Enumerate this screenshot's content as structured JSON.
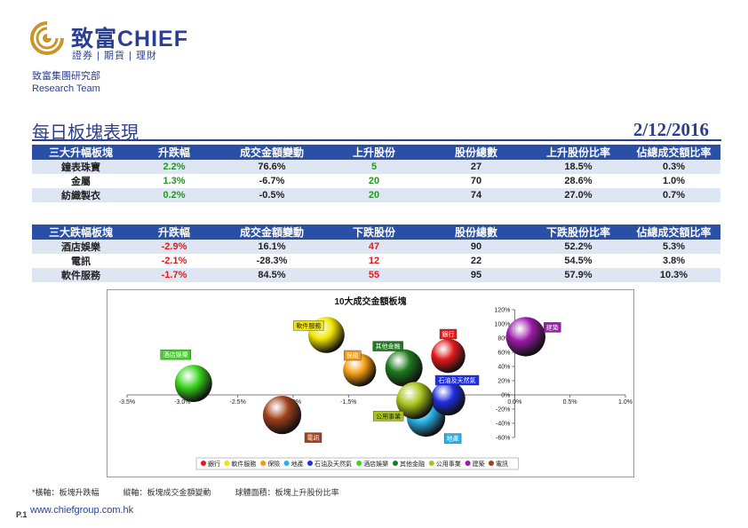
{
  "header": {
    "logo_name": "致富CHIEF",
    "logo_tagline": "證券 | 期貨 | 理財",
    "dept_cn": "致富集團研究部",
    "dept_en": "Research Team"
  },
  "page_title": "每日板塊表現",
  "date": "2/12/2016",
  "colors": {
    "brand": "#2a3f8f",
    "header_bg": "#2a4fa6",
    "alt_row": "#dfe6f3",
    "up": "#1e9a1e",
    "down": "#e01b1b"
  },
  "top_table": {
    "headers": [
      "三大升幅板塊",
      "升跌幅",
      "成交金額變動",
      "上升股份",
      "股份總數",
      "上升股份比率",
      "佔總成交額比率"
    ],
    "rows": [
      [
        "鐘表珠寶",
        "2.2%",
        "76.6%",
        "5",
        "27",
        "18.5%",
        "0.3%"
      ],
      [
        "金屬",
        "1.3%",
        "-6.7%",
        "20",
        "70",
        "28.6%",
        "1.0%"
      ],
      [
        "紡織製衣",
        "0.2%",
        "-0.5%",
        "20",
        "74",
        "27.0%",
        "0.7%"
      ]
    ]
  },
  "bottom_table": {
    "headers": [
      "三大跌幅板塊",
      "升跌幅",
      "成交金額變動",
      "下跌股份",
      "股份總數",
      "下跌股份比率",
      "佔總成交額比率"
    ],
    "rows": [
      [
        "酒店娛樂",
        "-2.9%",
        "16.1%",
        "47",
        "90",
        "52.2%",
        "5.3%"
      ],
      [
        "電訊",
        "-2.1%",
        "-28.3%",
        "12",
        "22",
        "54.5%",
        "3.8%"
      ],
      [
        "軟件服務",
        "-1.7%",
        "84.5%",
        "55",
        "95",
        "57.9%",
        "10.3%"
      ]
    ]
  },
  "chart_data": {
    "type": "scatter",
    "title": "10大成交金額板塊",
    "xlim": [
      -3.5,
      1.0
    ],
    "ylim": [
      -60,
      120
    ],
    "x_ticks": [
      "-3.5%",
      "-3.0%",
      "-2.5%",
      "-2.0%",
      "-1.5%",
      "-1.0%",
      "0.0%",
      "0.5%",
      "1.0%"
    ],
    "x_tick_values": [
      -3.5,
      -3.0,
      -2.5,
      -2.0,
      -1.5,
      -1.0,
      0.0,
      0.5,
      1.0
    ],
    "y_ticks": [
      "120%",
      "100%",
      "80%",
      "60%",
      "40%",
      "20%",
      "0%",
      "-20%",
      "-40%",
      "-60%"
    ],
    "y_tick_values": [
      120,
      100,
      80,
      60,
      40,
      20,
      0,
      -20,
      -40,
      -60
    ],
    "series": [
      {
        "name": "銀行",
        "x": -0.6,
        "y": 55,
        "size": 0.6,
        "color": "#e01b1b"
      },
      {
        "name": "軟件服務",
        "x": -1.7,
        "y": 84.5,
        "size": 0.7,
        "color": "#f2e600"
      },
      {
        "name": "保險",
        "x": -1.4,
        "y": 35,
        "size": 0.55,
        "color": "#f39c12"
      },
      {
        "name": "地產",
        "x": -0.8,
        "y": -32,
        "size": 0.8,
        "color": "#2ab0e8"
      },
      {
        "name": "石油及天然氣",
        "x": -0.6,
        "y": -5,
        "size": 0.6,
        "color": "#1f2ee0"
      },
      {
        "name": "酒店娛樂",
        "x": -2.9,
        "y": 16.1,
        "size": 0.75,
        "color": "#3ad31e"
      },
      {
        "name": "其他金融",
        "x": -1.0,
        "y": 38,
        "size": 0.75,
        "color": "#1d7a1d"
      },
      {
        "name": "公用事業",
        "x": -0.9,
        "y": -8,
        "size": 0.75,
        "color": "#a8c41a"
      },
      {
        "name": "建築",
        "x": 0.1,
        "y": 82,
        "size": 0.85,
        "color": "#9b1aa8"
      },
      {
        "name": "電訊",
        "x": -2.1,
        "y": -28.3,
        "size": 0.8,
        "color": "#a0401a"
      }
    ]
  },
  "footnote": {
    "x_axis": "*橫軸：板塊升跌幅",
    "y_axis": "縱軸：板塊成交金額變動",
    "bubble": "球體面積：板塊上升股份比率"
  },
  "footer": {
    "page": "P.1",
    "url": "www.chiefgroup.com.hk"
  }
}
